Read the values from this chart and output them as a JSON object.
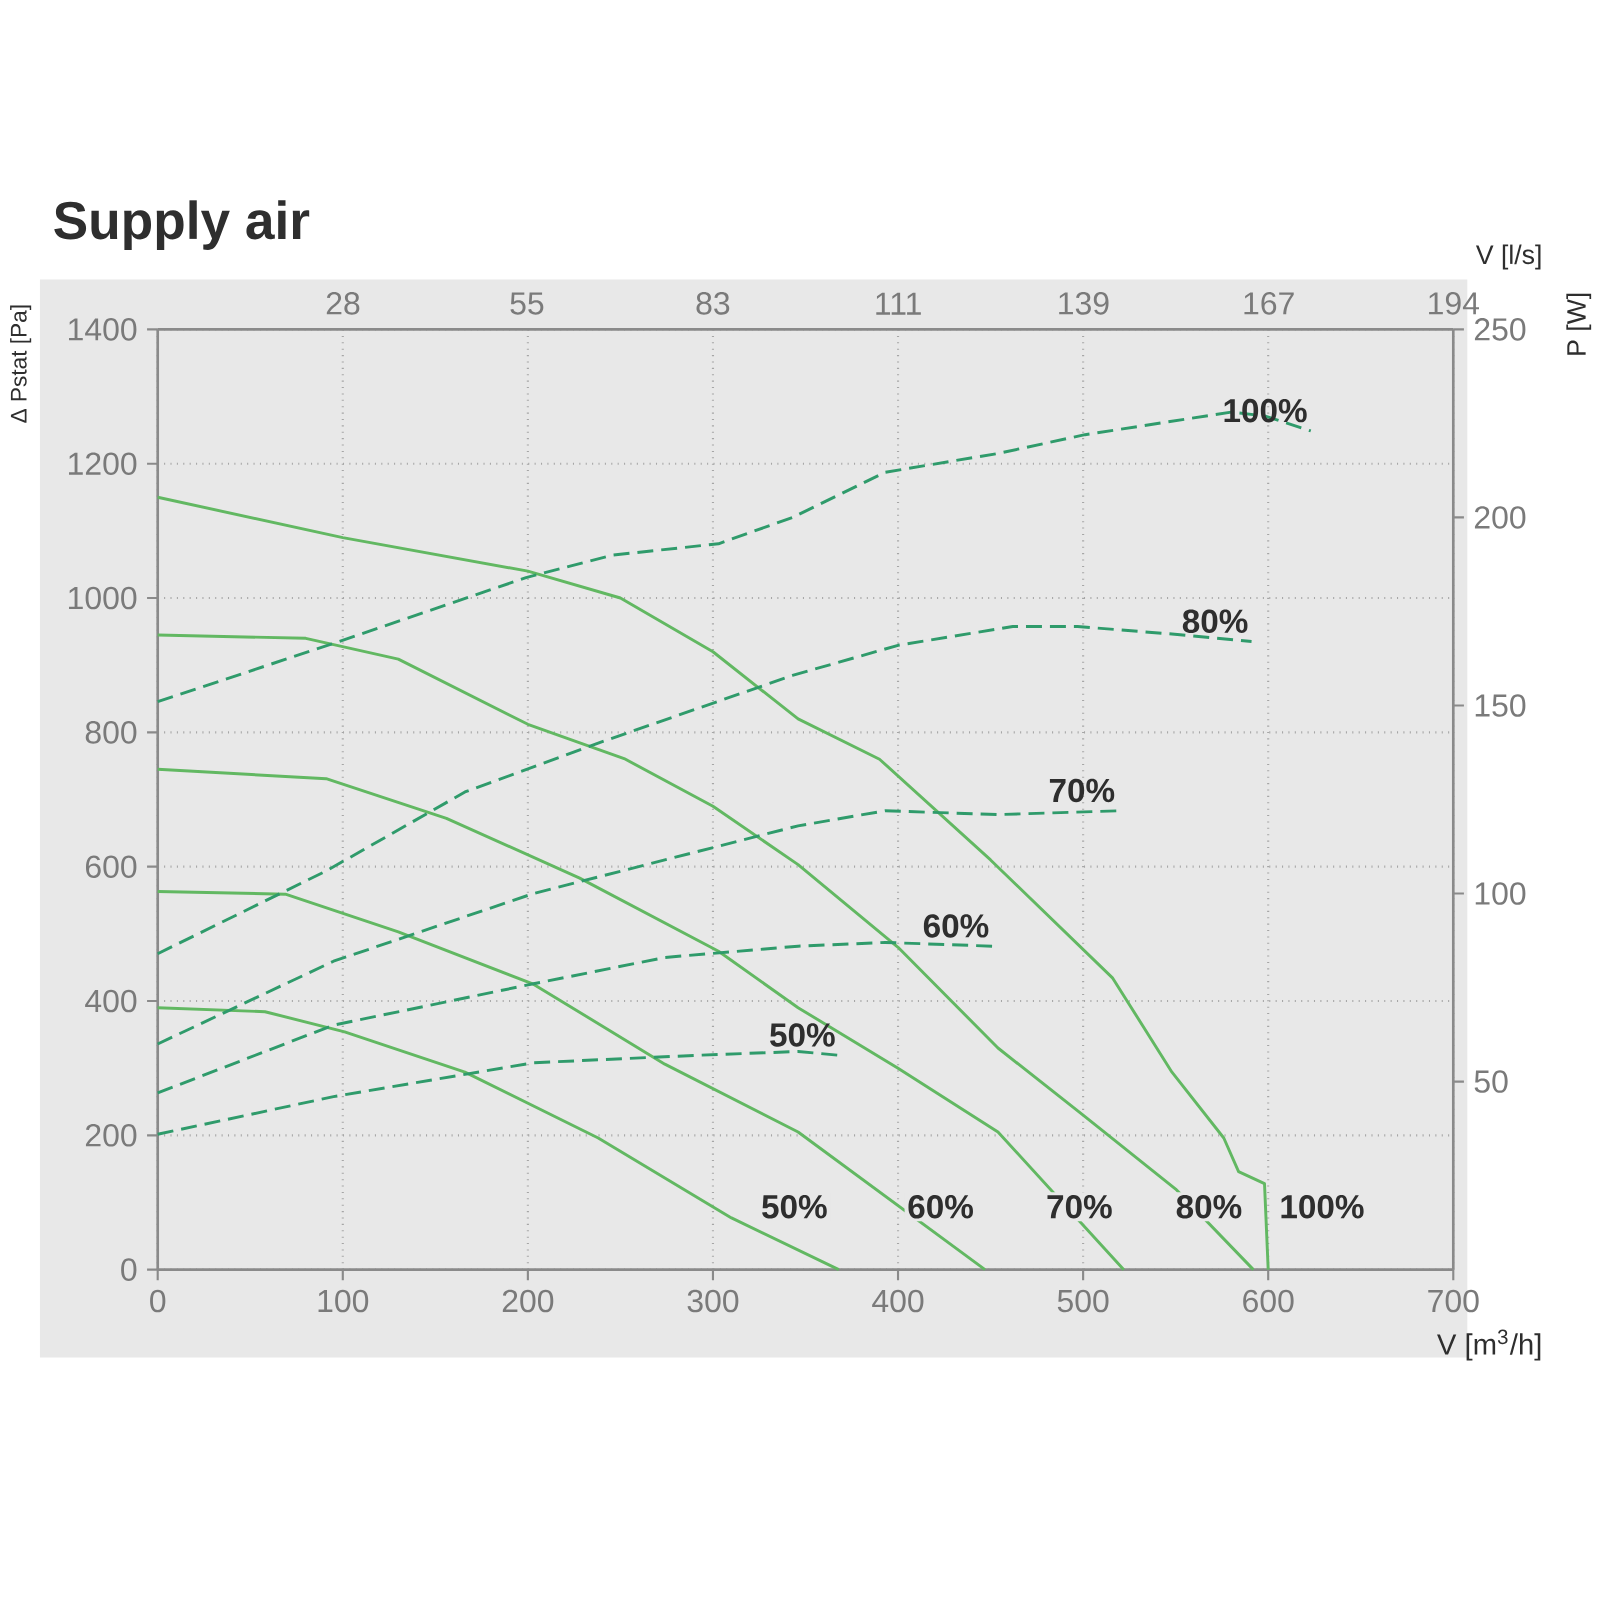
{
  "chart_data": {
    "type": "line",
    "title": "Supply air",
    "xlabel": "V [m$^{3}$/h]",
    "ylabel": "Δ Pstat [Pa]",
    "y2label": "P [W]",
    "x2label": "V [l/s]",
    "xlim": [
      0,
      700
    ],
    "xticks": [
      0,
      100,
      200,
      300,
      400,
      500,
      600,
      700
    ],
    "ylim": [
      0,
      1400
    ],
    "yticks": [
      0,
      200,
      400,
      600,
      800,
      1000,
      1200,
      1400
    ],
    "y2lim": [
      0,
      250
    ],
    "y2ticks": [
      50,
      100,
      150,
      200,
      250
    ],
    "x2lim": [
      0,
      194.4
    ],
    "x2ticks": [
      {
        "value": 27.8,
        "label": "28"
      },
      {
        "value": 55.4,
        "label": "55"
      },
      {
        "value": 83.3,
        "label": "83"
      },
      {
        "value": 111.1,
        "label": "111"
      },
      {
        "value": 138.9,
        "label": "139"
      },
      {
        "value": 166.7,
        "label": "167"
      },
      {
        "value": 194.4,
        "label": "194"
      }
    ],
    "grid": true,
    "series": [
      {
        "name": "50%",
        "color": "#62b862",
        "line_style": "solid",
        "x": [
          0,
          58,
          101,
          166,
          238,
          310,
          368
        ],
        "values": [
          390,
          384,
          354,
          294,
          196,
          77,
          0
        ]
      },
      {
        "name": "60%",
        "color": "#62b862",
        "line_style": "solid",
        "x": [
          0,
          69,
          130,
          203,
          274,
          346,
          447
        ],
        "values": [
          563,
          559,
          503,
          425,
          306,
          205,
          0
        ]
      },
      {
        "name": "70%",
        "color": "#62b862",
        "line_style": "solid",
        "x": [
          0,
          91,
          156,
          228,
          303,
          346,
          400,
          454,
          522
        ],
        "values": [
          745,
          731,
          672,
          583,
          474,
          390,
          300,
          205,
          0
        ]
      },
      {
        "name": "80%",
        "color": "#62b862",
        "line_style": "solid",
        "x": [
          0,
          80,
          130,
          200,
          252,
          300,
          346,
          400,
          454,
          500,
          550,
          592
        ],
        "values": [
          945,
          940,
          909,
          812,
          761,
          690,
          603,
          480,
          330,
          230,
          120,
          0
        ]
      },
      {
        "name": "100%",
        "color": "#62b862",
        "line_style": "solid",
        "x": [
          0,
          100,
          200,
          250,
          300,
          346,
          390,
          450,
          516,
          548,
          576,
          584,
          598,
          600
        ],
        "values": [
          1150,
          1090,
          1040,
          1000,
          920,
          820,
          760,
          610,
          434,
          294,
          196,
          146,
          128,
          0
        ]
      },
      {
        "name": "50%",
        "color": "#2f9b6b",
        "line_style": "dashed",
        "axis": "y2",
        "x": [
          0,
          95,
          203,
          292,
          346,
          368
        ],
        "values": [
          36,
          46,
          55,
          57,
          58,
          57
        ]
      },
      {
        "name": "60%",
        "color": "#2f9b6b",
        "line_style": "dashed",
        "axis": "y2",
        "x": [
          0,
          95,
          203,
          274,
          346,
          393,
          451
        ],
        "values": [
          47,
          65,
          76,
          83,
          86,
          87,
          86
        ]
      },
      {
        "name": "70%",
        "color": "#2f9b6b",
        "line_style": "dashed",
        "axis": "y2",
        "x": [
          0,
          95,
          203,
          346,
          393,
          454,
          519
        ],
        "values": [
          60,
          82,
          100,
          118,
          122,
          121,
          122
        ]
      },
      {
        "name": "80%",
        "color": "#2f9b6b",
        "line_style": "dashed",
        "axis": "y2",
        "x": [
          0,
          91,
          166,
          238,
          343,
          400,
          462,
          497,
          548,
          591
        ],
        "values": [
          84,
          106,
          127,
          140,
          158,
          166,
          171,
          171,
          169,
          167
        ]
      },
      {
        "name": "100%",
        "color": "#2f9b6b",
        "line_style": "dashed",
        "axis": "y2",
        "x": [
          0,
          98,
          199,
          246,
          303,
          343,
          393,
          454,
          501,
          580,
          598,
          623
        ],
        "values": [
          151,
          167,
          184,
          190,
          193,
          200,
          212,
          217,
          222,
          228,
          227,
          223
        ]
      }
    ]
  }
}
